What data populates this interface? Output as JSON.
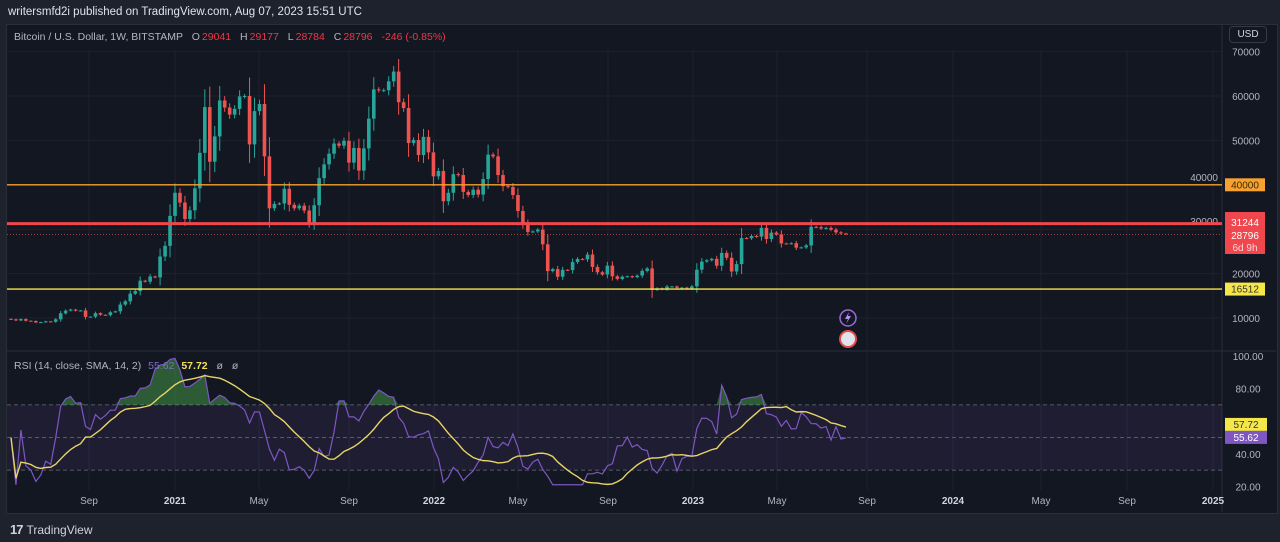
{
  "header": {
    "publisher": "writersmfd2i published on TradingView.com, Aug 07, 2023 15:51 UTC",
    "symbol": "Bitcoin / U.S. Dollar, 1W, BITSTAMP",
    "o_label": "O",
    "o": "29041",
    "h_label": "H",
    "h": "29177",
    "l_label": "L",
    "l": "28784",
    "c_label": "C",
    "c": "28796",
    "change": "-246 (-0.85%)",
    "currency_button": "USD"
  },
  "footer": {
    "brand": "TradingView",
    "logo_glyph": "17"
  },
  "colors": {
    "background": "#131722",
    "up": "#26a69a",
    "down": "#ef5350",
    "line_40000": "#f7a130",
    "line_31244": "#f0474f",
    "line_16512": "#f5e64a",
    "rsi": "#7e57c2",
    "rsi_sma": "#e8d466",
    "rsi_band": "#7e57c2"
  },
  "chart_data": [
    {
      "type": "candlestick",
      "title": "Bitcoin / U.S. Dollar, 1W, BITSTAMP",
      "ylim": [
        0,
        70000
      ],
      "y_ticks": [
        "10000",
        "20000",
        "30000",
        "40000",
        "50000",
        "60000",
        "70000"
      ],
      "x_ticks": [
        "Sep",
        "2021",
        "May",
        "Sep",
        "2022",
        "May",
        "Sep",
        "2023",
        "May",
        "Sep",
        "2024",
        "May",
        "Sep",
        "2025"
      ],
      "grid": true,
      "last_candle": {
        "date": "2023-08-07",
        "open": 29041,
        "high": 29177,
        "low": 28784,
        "close": 28796
      },
      "price_label": {
        "value": "28796",
        "countdown": "6d 9h"
      },
      "horizontal_lines": [
        {
          "value": 40000,
          "label": "40000",
          "color": "#f7a130"
        },
        {
          "value": 31244,
          "label": "31244",
          "color": "#f0474f"
        },
        {
          "value": 16512,
          "label": "16512",
          "color": "#f5e64a"
        }
      ],
      "weekly_close": [
        [
          "2020-05-18",
          9700
        ],
        [
          "2020-05-25",
          9450
        ],
        [
          "2020-06-01",
          9750
        ],
        [
          "2020-06-08",
          9380
        ],
        [
          "2020-06-15",
          9300
        ],
        [
          "2020-06-22",
          9000
        ],
        [
          "2020-06-29",
          9070
        ],
        [
          "2020-07-06",
          9250
        ],
        [
          "2020-07-13",
          9160
        ],
        [
          "2020-07-20",
          9700
        ],
        [
          "2020-07-27",
          11050
        ],
        [
          "2020-08-03",
          11650
        ],
        [
          "2020-08-10",
          11900
        ],
        [
          "2020-08-17",
          11650
        ],
        [
          "2020-08-24",
          11700
        ],
        [
          "2020-08-31",
          10250
        ],
        [
          "2020-09-07",
          10300
        ],
        [
          "2020-09-14",
          11080
        ],
        [
          "2020-09-21",
          10720
        ],
        [
          "2020-09-28",
          10650
        ],
        [
          "2020-10-05",
          11300
        ],
        [
          "2020-10-12",
          11500
        ],
        [
          "2020-10-19",
          13030
        ],
        [
          "2020-10-26",
          13750
        ],
        [
          "2020-11-02",
          15480
        ],
        [
          "2020-11-09",
          16050
        ],
        [
          "2020-11-16",
          18400
        ],
        [
          "2020-11-23",
          18180
        ],
        [
          "2020-11-30",
          19350
        ],
        [
          "2020-12-07",
          19150
        ],
        [
          "2020-12-14",
          23850
        ],
        [
          "2020-12-21",
          26250
        ],
        [
          "2020-12-28",
          33000
        ],
        [
          "2021-01-04",
          38200
        ],
        [
          "2021-01-11",
          36000
        ],
        [
          "2021-01-18",
          32300
        ],
        [
          "2021-01-25",
          34250
        ],
        [
          "2021-02-01",
          39200
        ],
        [
          "2021-02-08",
          47200
        ],
        [
          "2021-02-15",
          57500
        ],
        [
          "2021-02-22",
          45200
        ],
        [
          "2021-03-01",
          50900
        ],
        [
          "2021-03-08",
          59000
        ],
        [
          "2021-03-15",
          57400
        ],
        [
          "2021-03-22",
          55800
        ],
        [
          "2021-03-29",
          57100
        ],
        [
          "2021-04-05",
          59900
        ],
        [
          "2021-04-12",
          60000
        ],
        [
          "2021-04-19",
          49100
        ],
        [
          "2021-04-26",
          56600
        ],
        [
          "2021-05-03",
          58200
        ],
        [
          "2021-05-10",
          46400
        ],
        [
          "2021-05-17",
          34700
        ],
        [
          "2021-05-24",
          35700
        ],
        [
          "2021-05-31",
          35800
        ],
        [
          "2021-06-07",
          39100
        ],
        [
          "2021-06-14",
          35500
        ],
        [
          "2021-06-21",
          34700
        ],
        [
          "2021-06-28",
          35300
        ],
        [
          "2021-07-05",
          34200
        ],
        [
          "2021-07-12",
          31500
        ],
        [
          "2021-07-19",
          35400
        ],
        [
          "2021-07-26",
          41500
        ],
        [
          "2021-08-02",
          44600
        ],
        [
          "2021-08-09",
          47000
        ],
        [
          "2021-08-16",
          49300
        ],
        [
          "2021-08-23",
          48800
        ],
        [
          "2021-08-30",
          49900
        ],
        [
          "2021-09-06",
          45000
        ],
        [
          "2021-09-13",
          48300
        ],
        [
          "2021-09-20",
          43200
        ],
        [
          "2021-09-27",
          48200
        ],
        [
          "2021-10-04",
          54900
        ],
        [
          "2021-10-11",
          61500
        ],
        [
          "2021-10-18",
          61300
        ],
        [
          "2021-10-25",
          61300
        ],
        [
          "2021-11-01",
          63300
        ],
        [
          "2021-11-08",
          65500
        ],
        [
          "2021-11-15",
          58600
        ],
        [
          "2021-11-22",
          57300
        ],
        [
          "2021-11-29",
          49400
        ],
        [
          "2021-12-06",
          50100
        ],
        [
          "2021-12-13",
          46700
        ],
        [
          "2021-12-20",
          50800
        ],
        [
          "2021-12-27",
          47300
        ],
        [
          "2022-01-03",
          41900
        ],
        [
          "2022-01-10",
          43100
        ],
        [
          "2022-01-17",
          36300
        ],
        [
          "2022-01-24",
          38200
        ],
        [
          "2022-01-31",
          42400
        ],
        [
          "2022-02-07",
          42200
        ],
        [
          "2022-02-14",
          38400
        ],
        [
          "2022-02-21",
          37700
        ],
        [
          "2022-02-28",
          38900
        ],
        [
          "2022-03-07",
          37800
        ],
        [
          "2022-03-14",
          41300
        ],
        [
          "2022-03-21",
          46800
        ],
        [
          "2022-03-28",
          46400
        ],
        [
          "2022-04-04",
          42200
        ],
        [
          "2022-04-11",
          39700
        ],
        [
          "2022-04-18",
          39500
        ],
        [
          "2022-04-25",
          37700
        ],
        [
          "2022-05-02",
          34100
        ],
        [
          "2022-05-09",
          31300
        ],
        [
          "2022-05-16",
          29400
        ],
        [
          "2022-05-23",
          29500
        ],
        [
          "2022-05-30",
          29900
        ],
        [
          "2022-06-06",
          26600
        ],
        [
          "2022-06-13",
          20550
        ],
        [
          "2022-06-20",
          21000
        ],
        [
          "2022-06-27",
          19300
        ],
        [
          "2022-07-04",
          20850
        ],
        [
          "2022-07-11",
          20800
        ],
        [
          "2022-07-18",
          22600
        ],
        [
          "2022-07-25",
          23300
        ],
        [
          "2022-08-01",
          23200
        ],
        [
          "2022-08-08",
          24300
        ],
        [
          "2022-08-15",
          21500
        ],
        [
          "2022-08-22",
          20300
        ],
        [
          "2022-08-29",
          19800
        ],
        [
          "2022-09-05",
          21800
        ],
        [
          "2022-09-12",
          19400
        ],
        [
          "2022-09-19",
          18800
        ],
        [
          "2022-09-26",
          19300
        ],
        [
          "2022-10-03",
          19400
        ],
        [
          "2022-10-10",
          19200
        ],
        [
          "2022-10-17",
          19550
        ],
        [
          "2022-10-24",
          20600
        ],
        [
          "2022-10-31",
          21150
        ],
        [
          "2022-11-07",
          16330
        ],
        [
          "2022-11-14",
          16700
        ],
        [
          "2022-11-21",
          16450
        ],
        [
          "2022-11-28",
          17100
        ],
        [
          "2022-12-05",
          17100
        ],
        [
          "2022-12-12",
          16780
        ],
        [
          "2022-12-19",
          16850
        ],
        [
          "2022-12-26",
          16620
        ],
        [
          "2023-01-02",
          17130
        ],
        [
          "2023-01-09",
          20880
        ],
        [
          "2023-01-16",
          22700
        ],
        [
          "2023-01-23",
          23000
        ],
        [
          "2023-01-30",
          23320
        ],
        [
          "2023-02-06",
          21780
        ],
        [
          "2023-02-13",
          24650
        ],
        [
          "2023-02-20",
          23560
        ],
        [
          "2023-02-27",
          20470
        ],
        [
          "2023-03-06",
          22140
        ],
        [
          "2023-03-13",
          28000
        ],
        [
          "2023-03-20",
          27960
        ],
        [
          "2023-03-27",
          28460
        ],
        [
          "2023-04-03",
          28330
        ],
        [
          "2023-04-10",
          30300
        ],
        [
          "2023-04-17",
          27800
        ],
        [
          "2023-04-24",
          29230
        ],
        [
          "2023-05-01",
          28850
        ],
        [
          "2023-05-08",
          26780
        ],
        [
          "2023-05-15",
          26750
        ],
        [
          "2023-05-22",
          26840
        ],
        [
          "2023-05-29",
          25840
        ],
        [
          "2023-06-05",
          25900
        ],
        [
          "2023-06-12",
          26340
        ],
        [
          "2023-06-19",
          30540
        ],
        [
          "2023-06-26",
          30470
        ],
        [
          "2023-07-03",
          30160
        ],
        [
          "2023-07-10",
          30300
        ],
        [
          "2023-07-17",
          29900
        ],
        [
          "2023-07-24",
          29280
        ],
        [
          "2023-07-31",
          29041
        ],
        [
          "2023-08-07",
          28796
        ]
      ]
    },
    {
      "type": "line",
      "title": "RSI (14, close, SMA, 14, 2)",
      "values_label": {
        "rsi": "55.62",
        "sma": "57.72",
        "extra1": "ø",
        "extra2": "ø"
      },
      "ylim": [
        20,
        100
      ],
      "y_ticks": [
        "20.00",
        "40.00",
        "80.00",
        "100.00"
      ],
      "bands": [
        30,
        50,
        70
      ],
      "series": [
        {
          "name": "RSI",
          "last": 55.62,
          "color": "#7e57c2"
        },
        {
          "name": "RSI-based MA",
          "last": 57.72,
          "color": "#e8d466"
        }
      ]
    }
  ]
}
